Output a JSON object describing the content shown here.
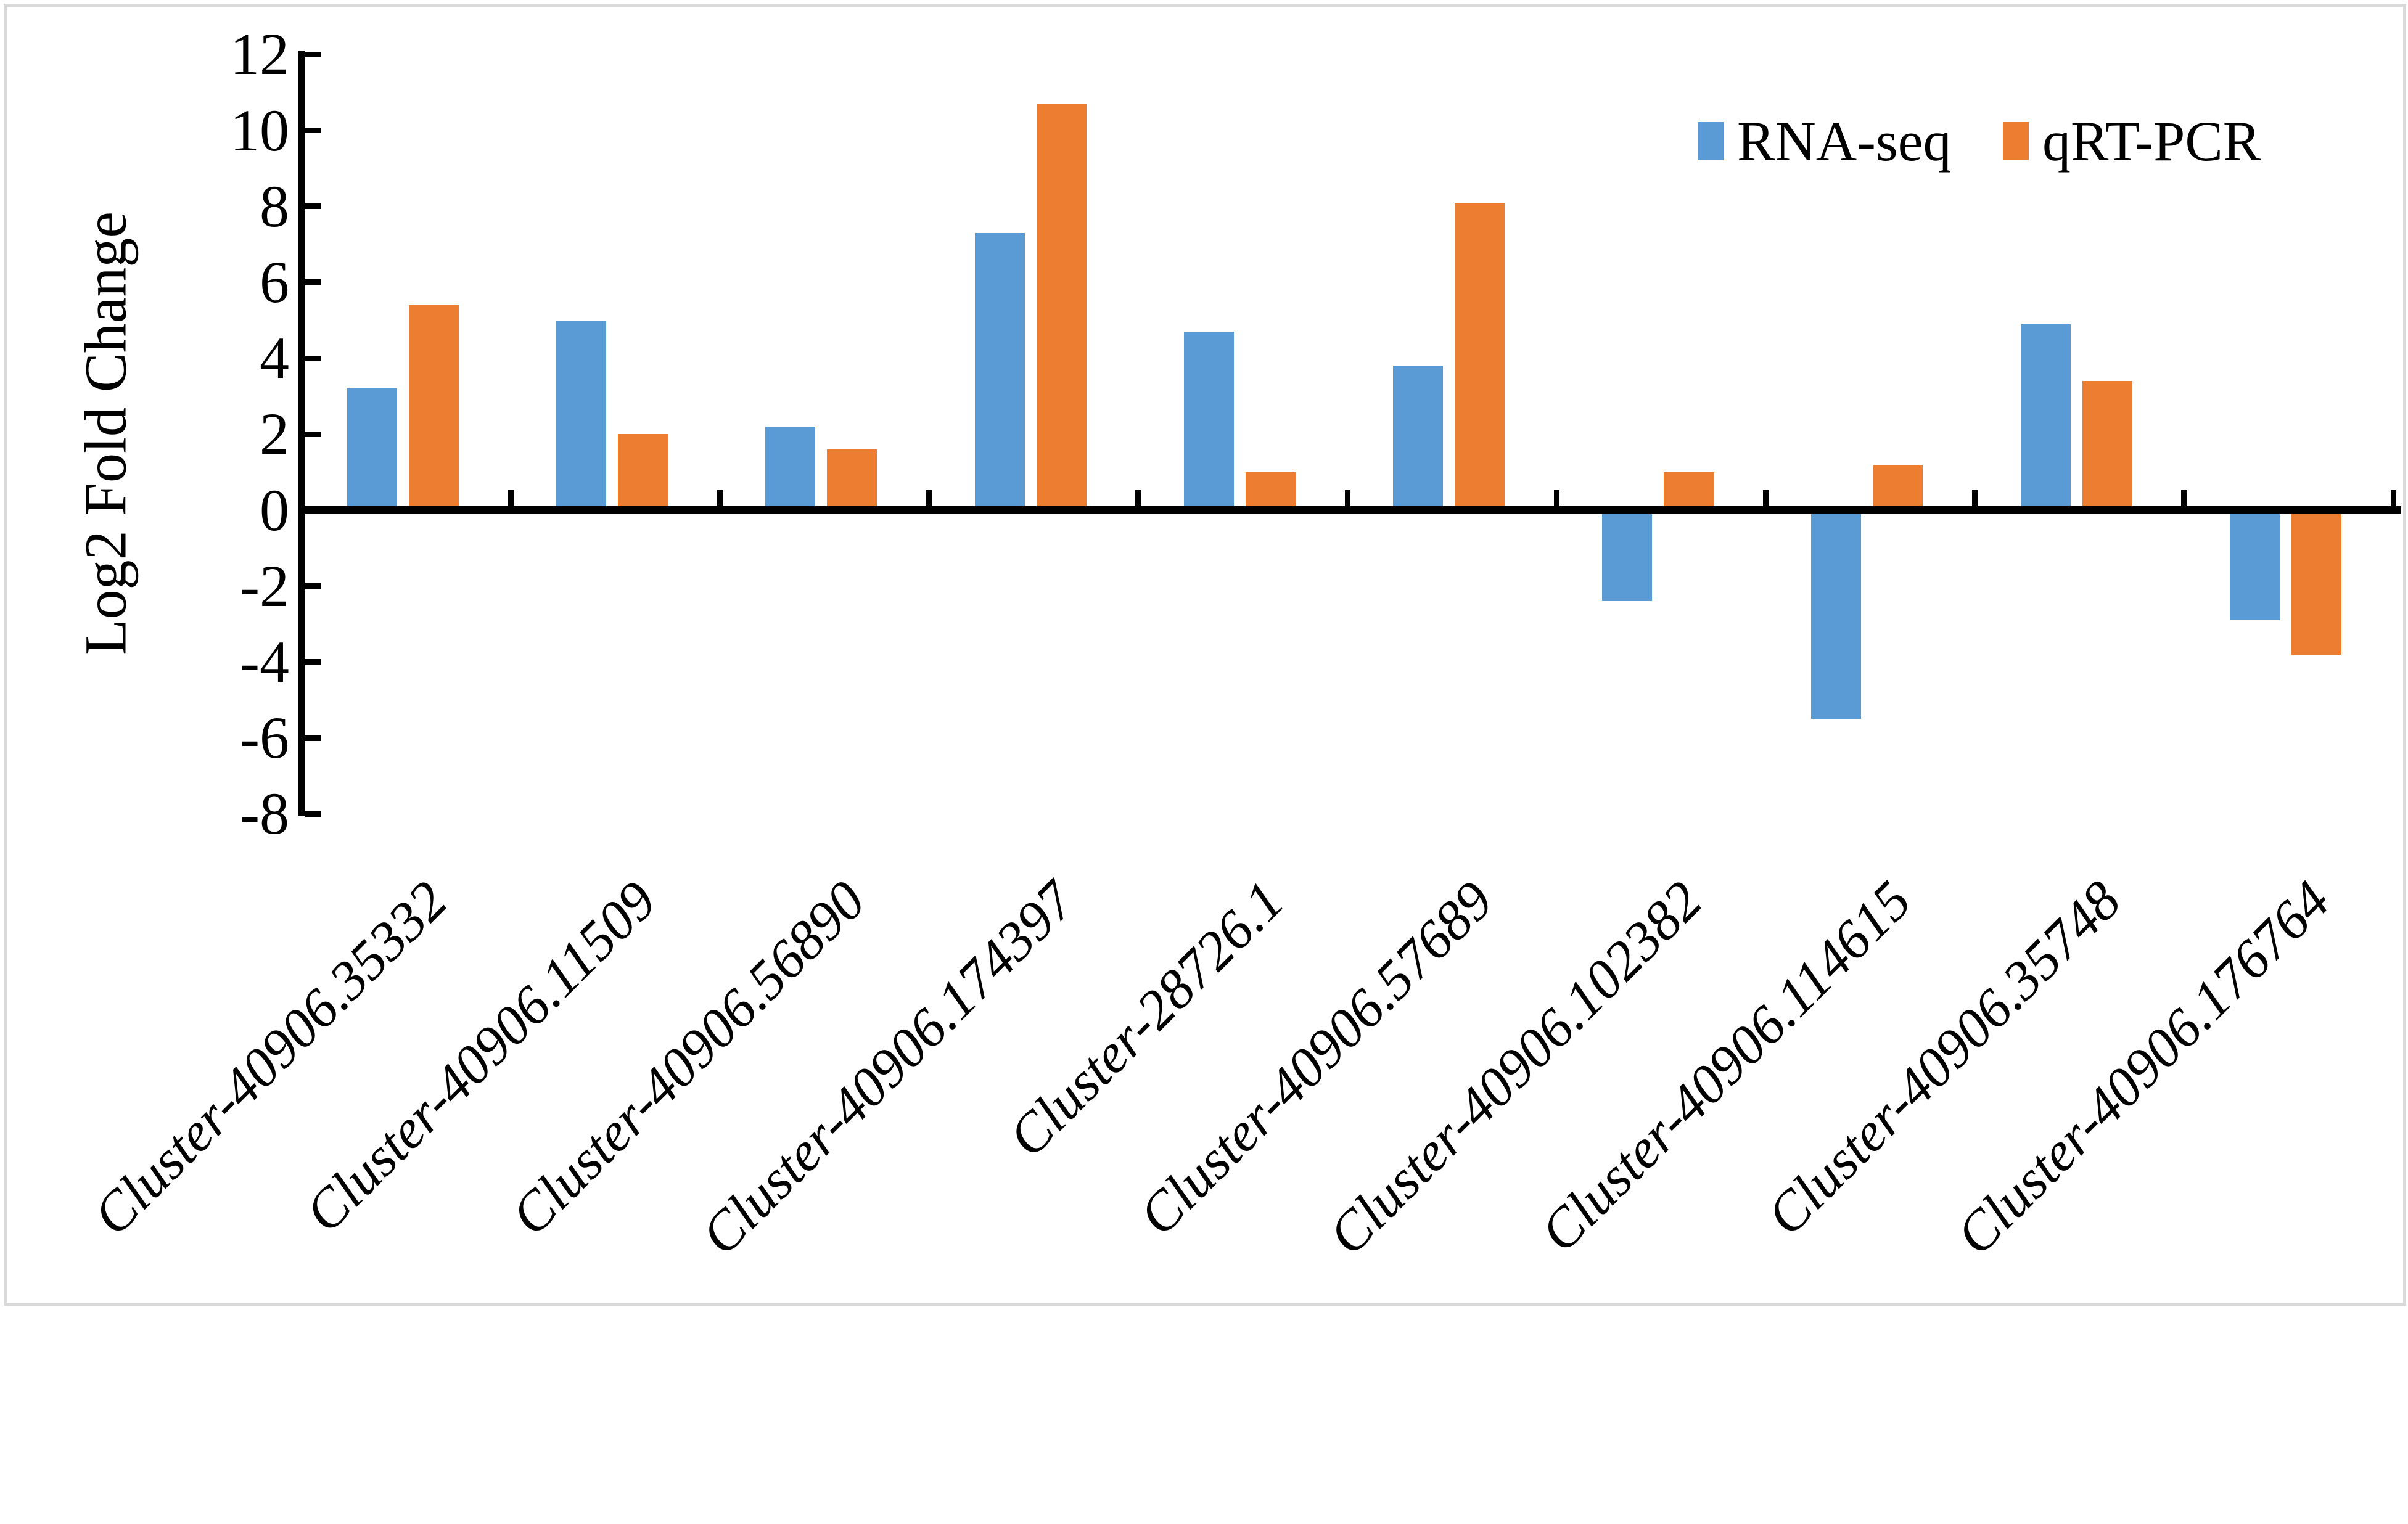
{
  "chart_data": {
    "type": "bar",
    "title": "",
    "xlabel": "",
    "ylabel": "Log2 Fold Change",
    "categories": [
      "Cluster-40906.35332",
      "Cluster-40906.11509",
      "Cluster-40906.56890",
      "Cluster-40906.174397",
      "Cluster-28726.1",
      "Cluster-40906.57689",
      "Cluster-40906.102382",
      "Cluster-40906.114615",
      "Cluster-40906.35748",
      "Cluster-40906.176764"
    ],
    "series": [
      {
        "name": "RNA-seq",
        "color": "#5B9BD5",
        "values": [
          3.2,
          5.0,
          2.2,
          7.3,
          4.7,
          3.8,
          -2.4,
          -5.5,
          4.9,
          -2.9
        ]
      },
      {
        "name": "qRT-PCR",
        "color": "#ED7D31",
        "values": [
          5.4,
          2.0,
          1.6,
          10.7,
          1.0,
          8.1,
          1.0,
          1.2,
          3.4,
          -3.8
        ]
      }
    ],
    "ylim": [
      -8,
      12
    ],
    "ytick_values": [
      12,
      10,
      8,
      6,
      4,
      2,
      0,
      -2,
      -4,
      -6,
      -8
    ],
    "ytick_labels": [
      "12",
      "10",
      "8",
      "6",
      "4",
      "2",
      "0",
      "-2",
      "-4",
      "-6",
      "-8"
    ],
    "grid": false,
    "legend_position": "top-right",
    "axis_color": "#000000",
    "border_color": "#D9D9D9",
    "background_color": "#FFFFFF",
    "bar_orientation": "vertical",
    "x_labels_rotation_deg": -45,
    "x_labels_style": "italic"
  }
}
